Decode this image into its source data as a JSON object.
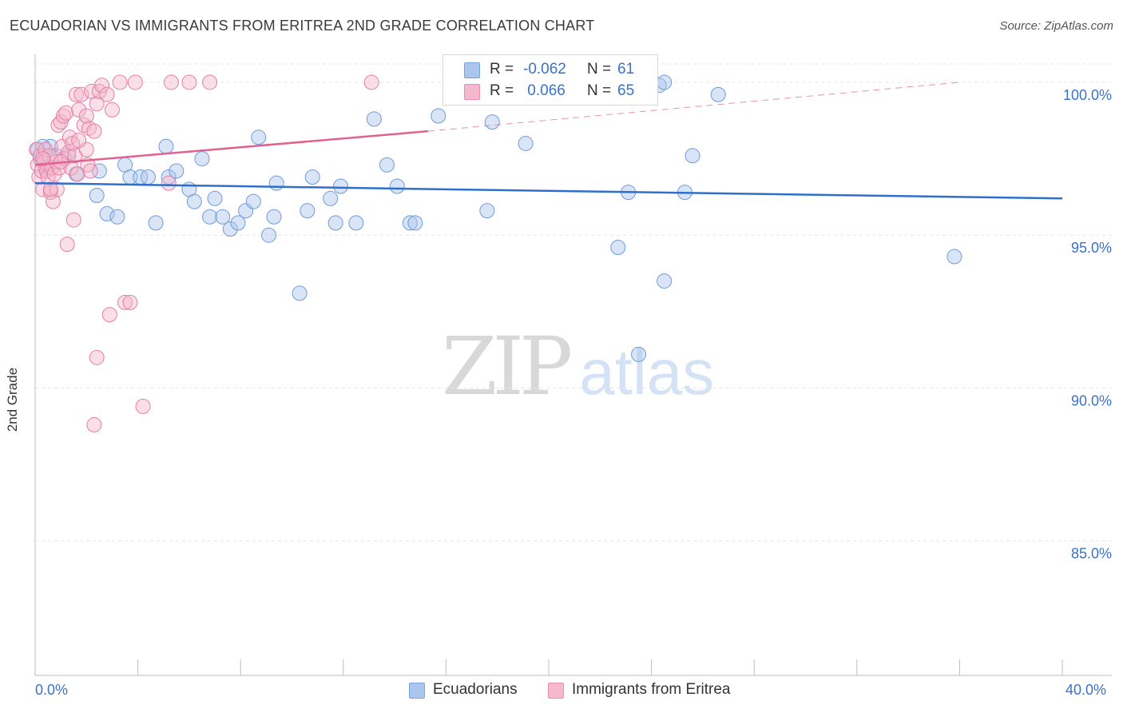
{
  "title": "ECUADORIAN VS IMMIGRANTS FROM ERITREA 2ND GRADE CORRELATION CHART",
  "source": "Source: ZipAtlas.com",
  "watermark": {
    "zip": "ZIP",
    "atlas": "atlas"
  },
  "legend": {
    "r_label": "R =",
    "n_label": "N =",
    "rows": [
      {
        "r": "-0.062",
        "n": "61",
        "color": "#aac6ee"
      },
      {
        "r": " 0.066",
        "n": "65",
        "color": "#f5b8cc"
      }
    ]
  },
  "bottom_legend": [
    "Ecuadorians",
    "Immigrants from Eritrea"
  ],
  "chart_data": {
    "type": "scatter",
    "title": "ECUADORIAN VS IMMIGRANTS FROM ERITREA 2ND GRADE CORRELATION CHART",
    "xlabel": "",
    "ylabel": "2nd Grade",
    "xlim": [
      0,
      40
    ],
    "ylim": [
      80.6,
      100.6
    ],
    "x_tick_labels": [
      "0.0%",
      "40.0%"
    ],
    "y_ticks": [
      85,
      90,
      95,
      100
    ],
    "y_tick_labels": [
      "85.0%",
      "90.0%",
      "95.0%",
      "100.0%"
    ],
    "grid": true,
    "legend_position": "top-center",
    "colors": {
      "ecuadorians": "#3a72c8",
      "eritrea": "#e0628e"
    },
    "series": [
      {
        "name": "Ecuadorians",
        "r": -0.062,
        "n": 61,
        "trend": {
          "x": [
            0,
            40
          ],
          "y": [
            96.7,
            96.2
          ]
        },
        "points": [
          [
            0.1,
            97.8
          ],
          [
            0.2,
            97.5
          ],
          [
            0.4,
            97.2
          ],
          [
            0.6,
            97.9
          ],
          [
            0.8,
            97.6
          ],
          [
            1.3,
            97.6
          ],
          [
            1.6,
            97.0
          ],
          [
            2.5,
            97.1
          ],
          [
            2.4,
            96.3
          ],
          [
            2.8,
            95.7
          ],
          [
            3.2,
            95.6
          ],
          [
            3.5,
            97.3
          ],
          [
            3.7,
            96.9
          ],
          [
            4.1,
            96.9
          ],
          [
            4.4,
            96.9
          ],
          [
            4.7,
            95.4
          ],
          [
            5.1,
            97.9
          ],
          [
            5.2,
            96.9
          ],
          [
            5.5,
            97.1
          ],
          [
            6.0,
            96.5
          ],
          [
            6.2,
            96.1
          ],
          [
            6.5,
            97.5
          ],
          [
            6.8,
            95.6
          ],
          [
            7.0,
            96.2
          ],
          [
            7.3,
            95.6
          ],
          [
            7.6,
            95.2
          ],
          [
            7.9,
            95.4
          ],
          [
            8.2,
            95.8
          ],
          [
            8.5,
            96.1
          ],
          [
            8.7,
            98.2
          ],
          [
            9.1,
            95.0
          ],
          [
            9.3,
            95.6
          ],
          [
            9.4,
            96.7
          ],
          [
            10.3,
            93.1
          ],
          [
            10.6,
            95.8
          ],
          [
            10.8,
            96.9
          ],
          [
            11.5,
            96.2
          ],
          [
            11.7,
            95.4
          ],
          [
            11.9,
            96.6
          ],
          [
            12.5,
            95.4
          ],
          [
            13.2,
            98.8
          ],
          [
            13.7,
            97.3
          ],
          [
            14.1,
            96.6
          ],
          [
            14.6,
            95.4
          ],
          [
            14.8,
            95.4
          ],
          [
            15.7,
            98.9
          ],
          [
            17.6,
            95.8
          ],
          [
            17.8,
            98.7
          ],
          [
            18.5,
            100.0
          ],
          [
            19.1,
            98.0
          ],
          [
            22.7,
            94.6
          ],
          [
            23.1,
            96.4
          ],
          [
            23.5,
            91.1
          ],
          [
            24.3,
            99.9
          ],
          [
            24.5,
            100.0
          ],
          [
            24.5,
            93.5
          ],
          [
            25.3,
            96.4
          ],
          [
            25.6,
            97.6
          ],
          [
            26.6,
            99.6
          ],
          [
            35.8,
            94.3
          ],
          [
            0.3,
            97.9
          ]
        ]
      },
      {
        "name": "Immigrants from Eritrea",
        "r": 0.066,
        "n": 65,
        "trend": {
          "x": [
            0,
            15.3
          ],
          "y": [
            97.3,
            98.4
          ]
        },
        "trend_extension": {
          "x": [
            15.3,
            36.0
          ],
          "y": [
            98.4,
            100.0
          ]
        },
        "points": [
          [
            0.05,
            97.8
          ],
          [
            0.1,
            97.3
          ],
          [
            0.15,
            96.9
          ],
          [
            0.2,
            97.6
          ],
          [
            0.25,
            97.1
          ],
          [
            0.3,
            96.5
          ],
          [
            0.35,
            97.4
          ],
          [
            0.4,
            97.8
          ],
          [
            0.45,
            97.1
          ],
          [
            0.5,
            96.9
          ],
          [
            0.55,
            97.6
          ],
          [
            0.6,
            96.4
          ],
          [
            0.65,
            97.2
          ],
          [
            0.7,
            96.1
          ],
          [
            0.75,
            97.0
          ],
          [
            0.8,
            97.4
          ],
          [
            0.85,
            96.5
          ],
          [
            0.9,
            98.6
          ],
          [
            0.95,
            97.2
          ],
          [
            1.0,
            98.7
          ],
          [
            1.05,
            97.9
          ],
          [
            1.1,
            98.9
          ],
          [
            1.15,
            97.5
          ],
          [
            1.2,
            99.0
          ],
          [
            1.25,
            94.7
          ],
          [
            1.3,
            97.7
          ],
          [
            1.35,
            98.2
          ],
          [
            1.4,
            97.2
          ],
          [
            1.45,
            98.0
          ],
          [
            1.5,
            95.5
          ],
          [
            1.55,
            97.6
          ],
          [
            1.6,
            99.6
          ],
          [
            1.65,
            97.0
          ],
          [
            1.7,
            99.1
          ],
          [
            1.8,
            99.6
          ],
          [
            1.9,
            98.6
          ],
          [
            2.0,
            97.8
          ],
          [
            2.05,
            97.3
          ],
          [
            2.1,
            98.5
          ],
          [
            2.15,
            97.1
          ],
          [
            2.2,
            99.7
          ],
          [
            2.3,
            98.4
          ],
          [
            2.4,
            99.3
          ],
          [
            2.5,
            99.7
          ],
          [
            2.6,
            99.9
          ],
          [
            2.8,
            99.6
          ],
          [
            2.9,
            92.4
          ],
          [
            3.0,
            99.1
          ],
          [
            3.3,
            100.0
          ],
          [
            3.5,
            92.8
          ],
          [
            3.7,
            92.8
          ],
          [
            3.9,
            100.0
          ],
          [
            4.2,
            89.4
          ],
          [
            5.2,
            96.7
          ],
          [
            5.3,
            100.0
          ],
          [
            6.0,
            100.0
          ],
          [
            6.8,
            100.0
          ],
          [
            13.1,
            100.0
          ],
          [
            2.3,
            88.8
          ],
          [
            2.4,
            91.0
          ],
          [
            0.6,
            96.5
          ],
          [
            1.0,
            97.4
          ],
          [
            0.3,
            97.5
          ],
          [
            1.7,
            98.1
          ],
          [
            2.0,
            98.9
          ]
        ]
      }
    ]
  }
}
